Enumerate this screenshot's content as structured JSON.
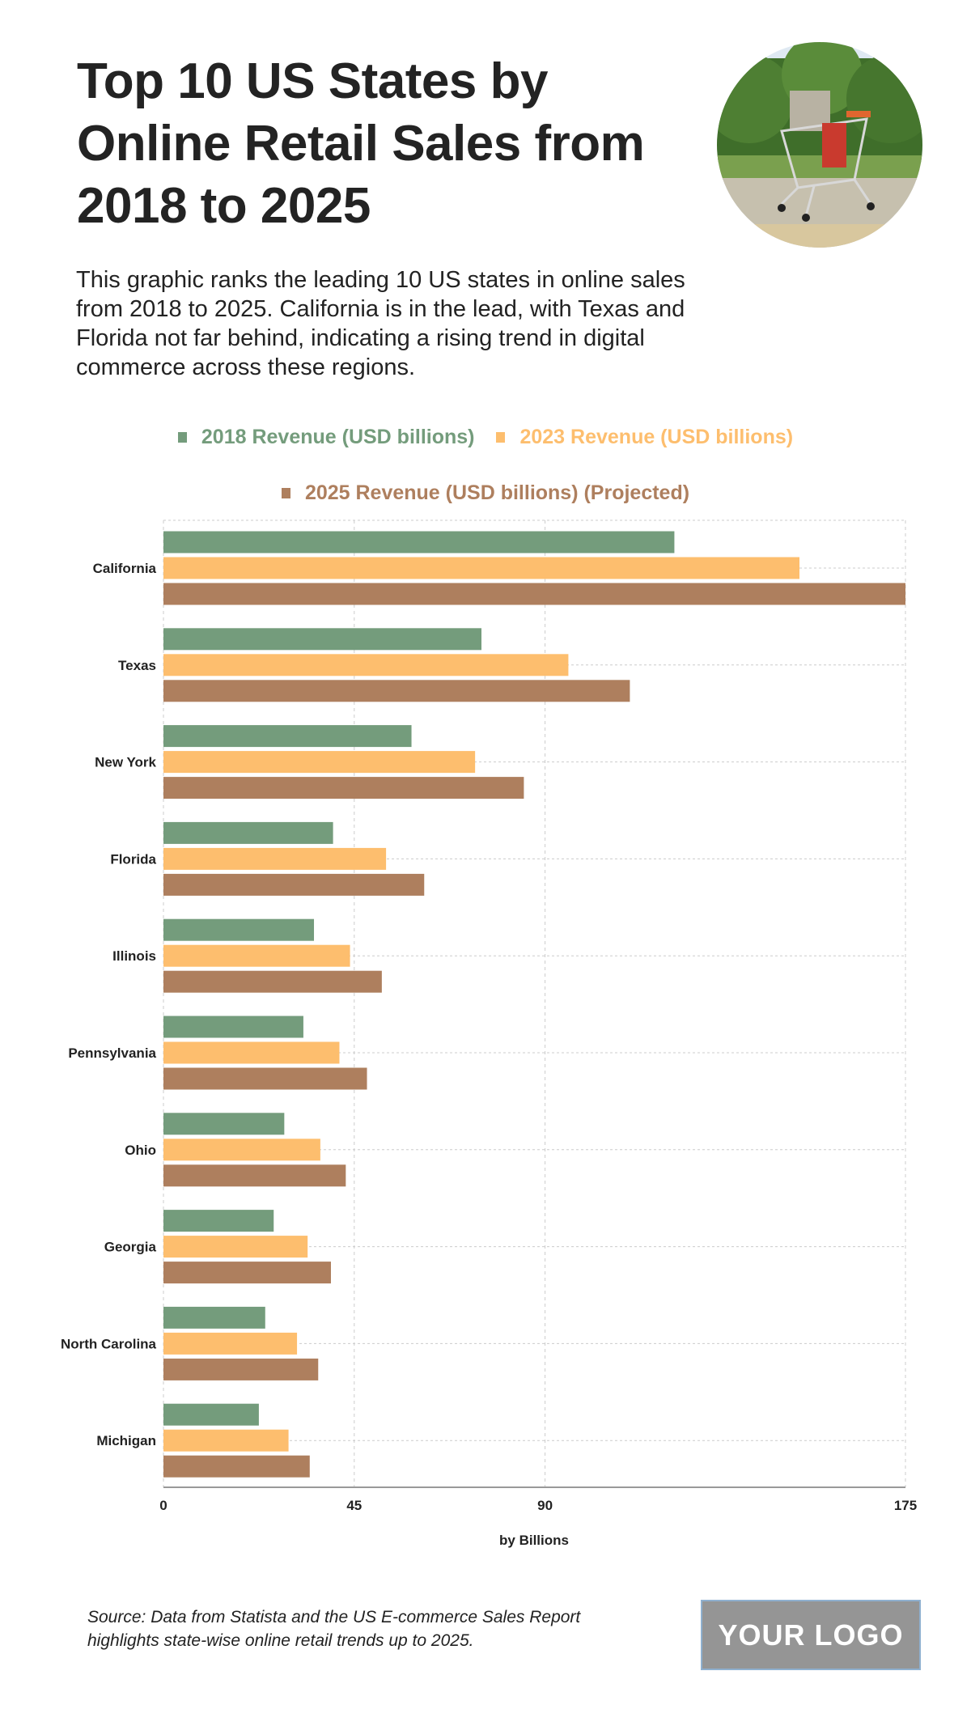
{
  "header": {
    "title": "Top 10 US States by Online Retail Sales from 2018 to 2025",
    "description": "This graphic ranks the leading 10 US states in online sales from 2018 to 2025. California is in the lead, with Texas and Florida not far behind, indicating a rising trend in digital commerce across these regions.",
    "photo": "shopping-cart-photo"
  },
  "chart_data": {
    "type": "bar",
    "orientation": "horizontal",
    "title": "",
    "xlabel": "by Billions",
    "ylabel": "",
    "xlim": [
      0,
      175
    ],
    "xticks": [
      0,
      45,
      90,
      175
    ],
    "grid": true,
    "legend_position": "top",
    "categories": [
      "California",
      "Texas",
      "New York",
      "Florida",
      "Illinois",
      "Pennsylvania",
      "Ohio",
      "Georgia",
      "North Carolina",
      "Michigan"
    ],
    "series": [
      {
        "name": "2018 Revenue (USD billions)",
        "color": "#749c7c",
        "values": [
          120.5,
          75,
          58.5,
          40,
          35.5,
          33,
          28.5,
          26,
          24,
          22.5
        ]
      },
      {
        "name": "2023 Revenue (USD billions)",
        "color": "#fdbe6e",
        "values": [
          150,
          95.5,
          73.5,
          52.5,
          44,
          41.5,
          37,
          34,
          31.5,
          29.5
        ]
      },
      {
        "name": "2025 Revenue (USD billions) (Projected)",
        "color": "#ae7f5e",
        "values": [
          175,
          110,
          85,
          61.5,
          51.5,
          48,
          43,
          39.5,
          36.5,
          34.5
        ]
      }
    ]
  },
  "footer": {
    "source": "Source: Data from Statista and the US E-commerce Sales Report highlights state-wise online retail trends up to 2025.",
    "logo": "YOUR LOGO"
  }
}
